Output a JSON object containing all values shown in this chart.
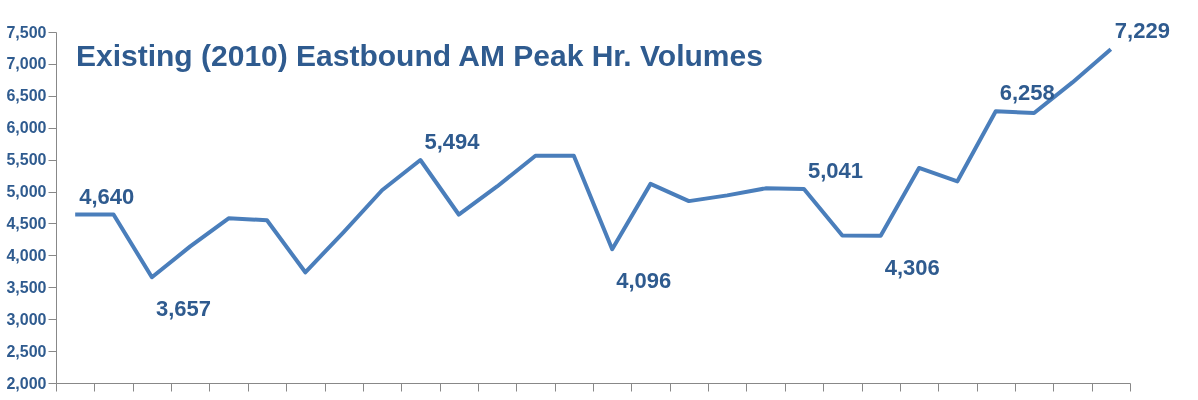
{
  "chart_data": {
    "type": "line",
    "title": "Existing (2010) Eastbound AM Peak Hr. Volumes",
    "categories": [
      null,
      null,
      null,
      null,
      null,
      null,
      null,
      null,
      null,
      null,
      null,
      null,
      null,
      null,
      null,
      null,
      null,
      null,
      null,
      null,
      null,
      null,
      null,
      null,
      null,
      null,
      null,
      null
    ],
    "series": [
      {
        "color": "#4a7ebb",
        "values": [
          4640,
          4640,
          3657,
          4140,
          4580,
          4550,
          3735,
          4365,
          5020,
          5494,
          4640,
          5080,
          5560,
          5560,
          4096,
          5120,
          4850,
          4940,
          5050,
          5041,
          4310,
          4306,
          5370,
          5160,
          6258,
          6230,
          6710,
          7229
        ],
        "value_labels": [
          "4,640",
          null,
          "3,657",
          null,
          null,
          null,
          null,
          null,
          null,
          "5,494",
          null,
          null,
          null,
          null,
          "4,096",
          null,
          null,
          null,
          null,
          "5,041",
          null,
          "4,306",
          null,
          null,
          "6,258",
          null,
          null,
          "7,229"
        ]
      }
    ],
    "ylim": [
      2000,
      7500
    ],
    "yticks": [
      {
        "value": 2000,
        "label": "2,000"
      },
      {
        "value": 2500,
        "label": "2,500"
      },
      {
        "value": 3000,
        "label": "3,000"
      },
      {
        "value": 3500,
        "label": "3,500"
      },
      {
        "value": 4000,
        "label": "4,000"
      },
      {
        "value": 4500,
        "label": "4,500"
      },
      {
        "value": 5000,
        "label": "5,000"
      },
      {
        "value": 5500,
        "label": "5,500"
      },
      {
        "value": 6000,
        "label": "6,000"
      },
      {
        "value": 6500,
        "label": "6,500"
      },
      {
        "value": 7000,
        "label": "7,000"
      },
      {
        "value": 7500,
        "label": "7,500"
      }
    ],
    "tick_labels": "y",
    "grid": false,
    "marker": "none",
    "line_style": "solid"
  }
}
